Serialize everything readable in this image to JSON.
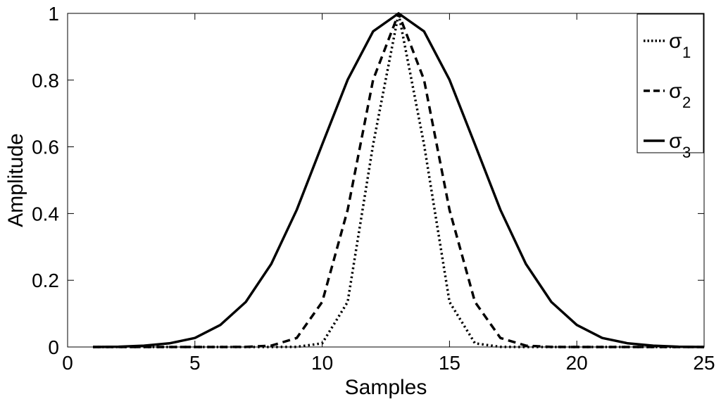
{
  "chart_data": {
    "type": "line",
    "title": "",
    "xlabel": "Samples",
    "ylabel": "Amplitude",
    "xlim": [
      0,
      25
    ],
    "ylim": [
      0,
      1
    ],
    "xticks": [
      "0",
      "5",
      "10",
      "15",
      "20",
      "25"
    ],
    "yticks": [
      "0",
      "0.2",
      "0.4",
      "0.6",
      "0.8",
      "1"
    ],
    "grid": false,
    "legend_position": "top-right",
    "x": [
      1,
      2,
      3,
      4,
      5,
      6,
      7,
      8,
      9,
      10,
      11,
      12,
      13,
      14,
      15,
      16,
      17,
      18,
      19,
      20,
      21,
      22,
      23,
      24,
      25
    ],
    "series": [
      {
        "name": "σ",
        "subscript": "1",
        "line_style": "dotted",
        "color": "#000000",
        "values": [
          0,
          0,
          0,
          0,
          0,
          0,
          0,
          0,
          0.0004,
          0.011,
          0.135,
          0.607,
          1,
          0.607,
          0.135,
          0.011,
          0.0004,
          0,
          0,
          0,
          0,
          0,
          0,
          0,
          0
        ]
      },
      {
        "name": "σ",
        "subscript": "2",
        "line_style": "dashed",
        "color": "#000000",
        "values": [
          0,
          0,
          0,
          0,
          0,
          0,
          0.0003,
          0.004,
          0.027,
          0.135,
          0.411,
          0.801,
          1,
          0.801,
          0.411,
          0.135,
          0.027,
          0.004,
          0.0003,
          0,
          0,
          0,
          0,
          0,
          0
        ]
      },
      {
        "name": "σ",
        "subscript": "3",
        "line_style": "solid",
        "color": "#000000",
        "values": [
          0.0001,
          0.0008,
          0.004,
          0.011,
          0.027,
          0.066,
          0.135,
          0.249,
          0.411,
          0.607,
          0.801,
          0.946,
          1,
          0.946,
          0.801,
          0.607,
          0.411,
          0.249,
          0.135,
          0.066,
          0.027,
          0.011,
          0.004,
          0.0008,
          0.0001
        ]
      }
    ]
  }
}
